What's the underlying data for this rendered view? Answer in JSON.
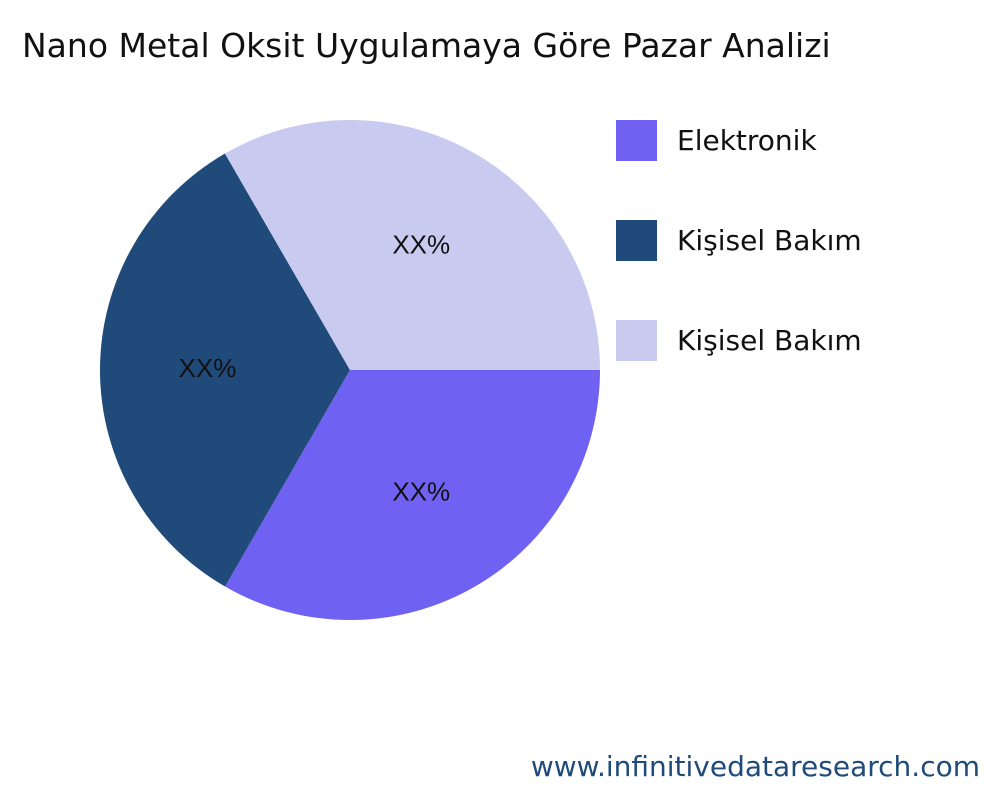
{
  "chart_data": {
    "type": "pie",
    "title": "Nano Metal Oksit Uygulamaya Göre Pazar Analizi",
    "slices": [
      {
        "name": "Elektronik",
        "value": 33.33,
        "label": "XX%",
        "color": "#6f61f1"
      },
      {
        "name": "Kişisel Bakım",
        "value": 33.33,
        "label": "XX%",
        "color": "#1f4a7a"
      },
      {
        "name": "Kişisel Bakım",
        "value": 33.34,
        "label": "XX%",
        "color": "#c9caf0"
      }
    ],
    "legend_position": "right"
  },
  "watermark": "www.infinitivedataresearch.com"
}
